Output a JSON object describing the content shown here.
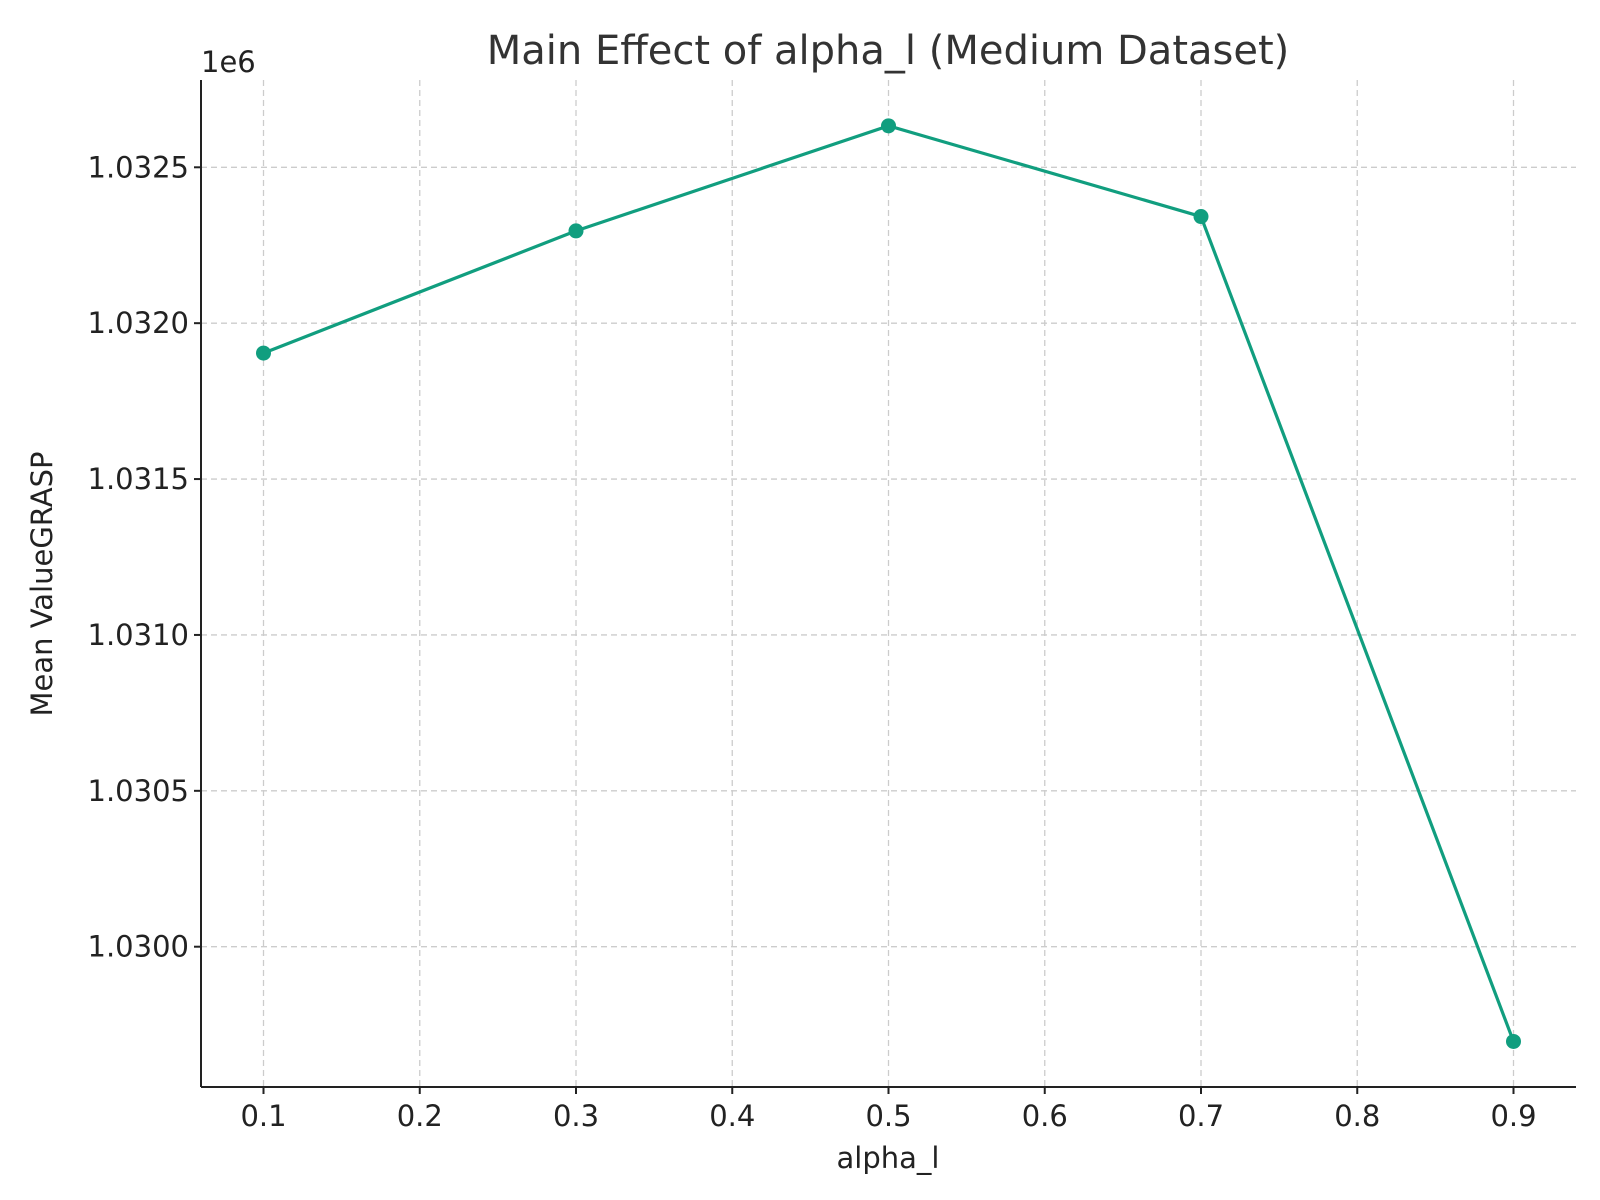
{
  "chart_data": {
    "type": "line",
    "title": "Main Effect of alpha_l (Medium Dataset)",
    "xlabel": "alpha_l",
    "ylabel": "Mean ValueGRASP",
    "y_offset_label": "1e6",
    "x": [
      0.1,
      0.3,
      0.5,
      0.7,
      0.9
    ],
    "series": [
      {
        "values": [
          1031904,
          1032296,
          1032633,
          1032342,
          1029696
        ],
        "color": "#119e7f"
      }
    ],
    "xlim": [
      0.06,
      0.94
    ],
    "ylim": [
      1029550,
      1032780
    ],
    "x_ticks": [
      0.1,
      0.2,
      0.3,
      0.4,
      0.5,
      0.6,
      0.7,
      0.8,
      0.9
    ],
    "x_tick_labels": [
      "0.1",
      "0.2",
      "0.3",
      "0.4",
      "0.5",
      "0.6",
      "0.7",
      "0.8",
      "0.9"
    ],
    "y_ticks": [
      1030000,
      1030500,
      1031000,
      1031500,
      1032000,
      1032500
    ],
    "y_tick_labels": [
      "1.0300",
      "1.0305",
      "1.0310",
      "1.0315",
      "1.0320",
      "1.0325"
    ],
    "grid": true,
    "grid_color": "#cccccc",
    "axis_color": "#222222"
  }
}
